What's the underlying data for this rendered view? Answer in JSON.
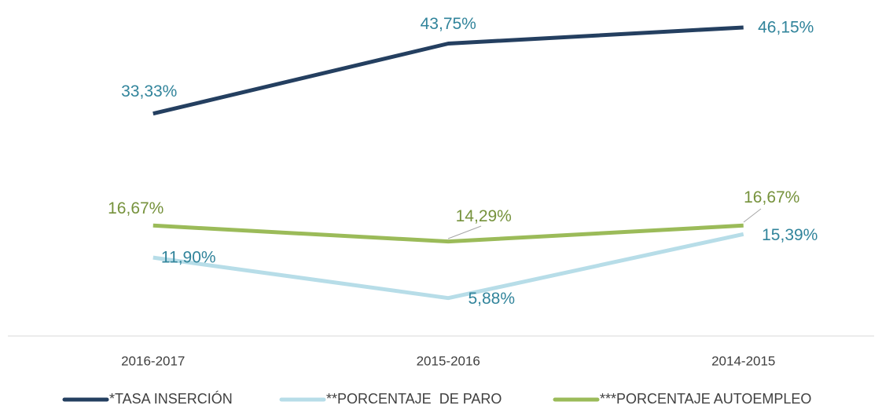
{
  "chart_data": {
    "type": "line",
    "categories": [
      "2016-2017",
      "2015-2016",
      "2014-2015"
    ],
    "series": [
      {
        "name": "*TASA INSERCIÓN",
        "color": "#243f60",
        "values": [
          33.33,
          43.75,
          46.15
        ],
        "value_labels": [
          "33,33%",
          "43,75%",
          "46,15%"
        ]
      },
      {
        "name": "**PORCENTAJE  DE PARO",
        "color": "#b7dde8",
        "values": [
          11.9,
          5.88,
          15.39
        ],
        "value_labels": [
          "11,90%",
          "5,88%",
          "15,39%"
        ]
      },
      {
        "name": "***PORCENTAJE AUTOEMPLEO",
        "color": "#9bbb59",
        "values": [
          16.67,
          14.29,
          16.67
        ],
        "value_labels": [
          "16,67%",
          "14,29%",
          "16,67%"
        ]
      }
    ],
    "ylim": [
      0,
      50
    ]
  }
}
